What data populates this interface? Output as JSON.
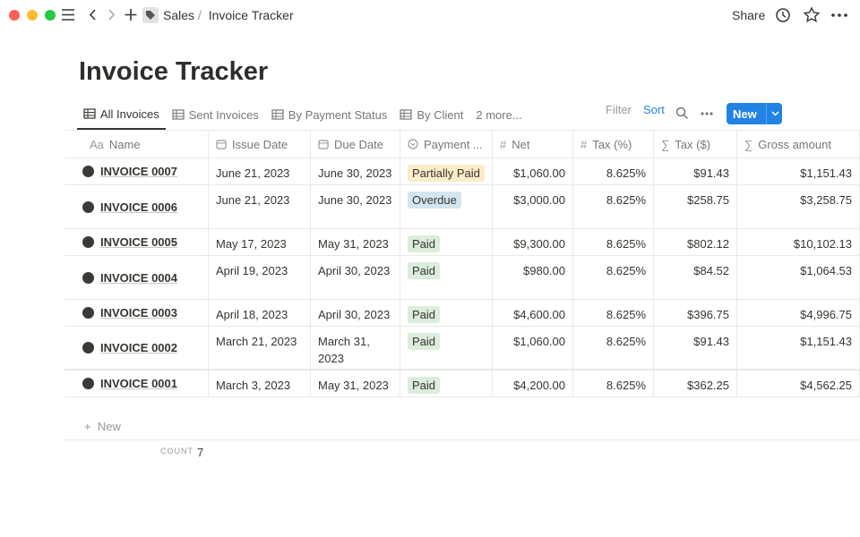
{
  "topbar": {
    "breadcrumb": [
      "Sales",
      "Invoice Tracker"
    ],
    "separator": "/",
    "share": "Share"
  },
  "title": "Invoice Tracker",
  "views": {
    "tabs": [
      "All Invoices",
      "Sent Invoices",
      "By Payment Status",
      "By Client"
    ],
    "more": "2 more...",
    "filter": "Filter",
    "sort": "Sort",
    "new": "New"
  },
  "table": {
    "columns": [
      {
        "icon": "Aa",
        "label": "Name"
      },
      {
        "label": "Issue Date"
      },
      {
        "label": "Due Date"
      },
      {
        "label": "Payment ..."
      },
      {
        "icon": "#",
        "label": "Net"
      },
      {
        "icon": "#",
        "label": "Tax (%)"
      },
      {
        "icon": "∑",
        "label": "Tax ($)"
      },
      {
        "icon": "∑",
        "label": "Gross amount"
      }
    ],
    "rows": [
      [
        "INVOICE 0007",
        "June 21, 2023",
        "June 30, 2023",
        {
          "label": "Partially Paid",
          "color": "#fdecc8"
        },
        "$1,060.00",
        "8.625%",
        "$91.43",
        "$1,151.43"
      ],
      [
        "INVOICE 0006",
        "June 21, 2023",
        "June 30, 2023",
        {
          "label": "Overdue",
          "color": "#d3e5ef"
        },
        "$3,000.00",
        "8.625%",
        "$258.75",
        "$3,258.75"
      ],
      [
        "INVOICE 0005",
        "May 17, 2023",
        "May 31, 2023",
        {
          "label": "Paid",
          "color": "#dbeddb"
        },
        "$9,300.00",
        "8.625%",
        "$802.12",
        "$10,102.13"
      ],
      [
        "INVOICE 0004",
        "April 19, 2023",
        "April 30, 2023",
        {
          "label": "Paid",
          "color": "#dbeddb"
        },
        "$980.00",
        "8.625%",
        "$84.52",
        "$1,064.53"
      ],
      [
        "INVOICE 0003",
        "April 18, 2023",
        "April 30, 2023",
        {
          "label": "Paid",
          "color": "#dbeddb"
        },
        "$4,600.00",
        "8.625%",
        "$396.75",
        "$4,996.75"
      ],
      [
        "INVOICE 0002",
        "March 21, 2023",
        "March 31, 2023",
        {
          "label": "Paid",
          "color": "#dbeddb"
        },
        "$1,060.00",
        "8.625%",
        "$91.43",
        "$1,151.43"
      ],
      [
        "INVOICE 0001",
        "March 3, 2023",
        "May 31, 2023",
        {
          "label": "Paid",
          "color": "#dbeddb"
        },
        "$4,200.00",
        "8.625%",
        "$362.25",
        "$4,562.25"
      ]
    ],
    "add_row": "New",
    "count_label": "COUNT",
    "count": 7
  }
}
